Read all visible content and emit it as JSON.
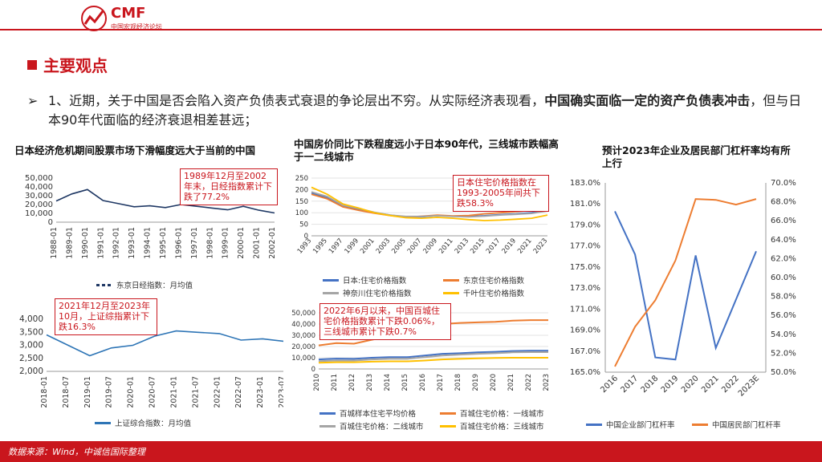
{
  "logo": {
    "name": "CMF",
    "subtitle": "中国宏观经济论坛"
  },
  "section_title": "主要观点",
  "bullet": {
    "prefix": "➢",
    "part1": "1、近期，关于中国是否会陷入资产负债表式衰退的争论层出不穷。从实际经济表现看，",
    "bold": "中国确实面临一定的资产负债表冲击",
    "part2": "，但与日本90年代面临的经济衰退相差甚远；"
  },
  "footer": "数据来源：Wind，中诚信国际整理",
  "colors": {
    "brand_red": "#c9161d",
    "navy": "#1f3864",
    "blue": "#4472c4",
    "orange": "#ed7d31",
    "gray": "#a5a5a5",
    "yellow": "#ffc000"
  },
  "charts": {
    "c1": {
      "title": "日本经济危机期间股票市场下滑幅度远大于当前的中国",
      "callout": "1989年12月至2002年末，日经指数累计下跌了77.2%",
      "legend": "东京日经指数：月均值"
    },
    "c2": {
      "callout": "2021年12月至2023年10月，上证综指累计下跌16.3%",
      "legend": "上证综合指数：月均值"
    },
    "c3": {
      "title": "中国房价同比下跌程度远小于日本90年代，三线城市跌幅高于一二线城市",
      "callout": "日本住宅价格指数在1993-2005年间共下跌58.3%",
      "legends": [
        "日本:住宅价格指数",
        "东京住宅价格指数",
        "神奈川住宅价格指数",
        "千叶住宅价格指数"
      ]
    },
    "c4": {
      "callout": "2022年6月以来，中国百城住宅价格指数累计下跌0.06%，三线城市累计下跌0.7%",
      "legends": [
        "百城样本住宅平均价格",
        "百城住宅价格：一线城市",
        "百城住宅价格：二线城市",
        "百城住宅价格：三线城市"
      ]
    },
    "c5": {
      "title": "预计2023年企业及居民部门杠杆率均有所上行",
      "legends": [
        "中国企业部门杠杆率",
        "中国居民部门杠杆率"
      ]
    }
  },
  "chart_data": [
    {
      "id": "c1",
      "type": "line",
      "title": "日本经济危机期间股票市场下滑幅度远大于当前的中国",
      "x": [
        "1988-01",
        "1989-01",
        "1990-01",
        "1991-01",
        "1992-01",
        "1993-01",
        "1994-01",
        "1995-01",
        "1996-01",
        "1997-01",
        "1998-01",
        "1999-01",
        "2000-01",
        "2001-01",
        "2002-01"
      ],
      "series": [
        {
          "name": "东京日经指数：月均值",
          "values": [
            24000,
            32000,
            37000,
            24500,
            21000,
            17500,
            18500,
            16500,
            20000,
            18000,
            16000,
            14000,
            18000,
            13500,
            10500
          ]
        }
      ],
      "yticks": [
        "0",
        "10,000",
        "20,000",
        "30,000",
        "40,000",
        "50,000"
      ],
      "ylim": [
        0,
        50000
      ]
    },
    {
      "id": "c2",
      "type": "line",
      "x": [
        "2018-01",
        "2018-07",
        "2019-01",
        "2019-07",
        "2020-01",
        "2020-07",
        "2021-01",
        "2021-07",
        "2022-01",
        "2022-07",
        "2023-01",
        "2023-07"
      ],
      "series": [
        {
          "name": "上证综合指数：月均值",
          "values": [
            3400,
            3000,
            2600,
            2900,
            3000,
            3350,
            3550,
            3500,
            3450,
            3200,
            3250,
            3150
          ]
        }
      ],
      "yticks": [
        "2,000",
        "2,500",
        "3,000",
        "3,500",
        "4,000"
      ],
      "ylim": [
        2000,
        4000
      ]
    },
    {
      "id": "c3",
      "type": "line",
      "title": "中国房价同比下跌程度远小于日本90年代，三线城市跌幅高于一二线城市",
      "x": [
        "1993",
        "1995",
        "1997",
        "1999",
        "2001",
        "2003",
        "2005",
        "2007",
        "2009",
        "2011",
        "2013",
        "2015",
        "2017",
        "2019",
        "2021",
        "2023"
      ],
      "series": [
        {
          "name": "日本:住宅价格指数",
          "values": [
            185,
            165,
            130,
            115,
            100,
            90,
            82,
            82,
            88,
            85,
            84,
            87,
            92,
            95,
            100,
            110
          ]
        },
        {
          "name": "东京住宅价格指数",
          "values": [
            180,
            160,
            125,
            110,
            98,
            88,
            80,
            85,
            90,
            86,
            88,
            95,
            100,
            105,
            110,
            125
          ]
        },
        {
          "name": "神奈川住宅价格指数",
          "values": [
            190,
            170,
            132,
            118,
            102,
            90,
            84,
            84,
            87,
            84,
            82,
            85,
            90,
            93,
            97,
            108
          ]
        },
        {
          "name": "千叶住宅价格指数",
          "values": [
            210,
            180,
            138,
            120,
            100,
            88,
            78,
            76,
            80,
            76,
            70,
            66,
            68,
            72,
            76,
            90
          ]
        }
      ],
      "yticks": [
        "0",
        "50",
        "100",
        "150",
        "200",
        "250"
      ],
      "ylim": [
        0,
        250
      ]
    },
    {
      "id": "c4",
      "type": "line",
      "x": [
        "2010",
        "2011",
        "2012",
        "2013",
        "2014",
        "2015",
        "2016",
        "2017",
        "2018",
        "2019",
        "2020",
        "2021",
        "2022",
        "2023"
      ],
      "series": [
        {
          "name": "百城样本住宅平均价格",
          "values": [
            8500,
            9200,
            9000,
            10000,
            10500,
            10500,
            12000,
            13500,
            14000,
            14800,
            15300,
            16000,
            16200,
            16200
          ]
        },
        {
          "name": "百城住宅价格：一线城市",
          "values": [
            21000,
            23000,
            22500,
            26000,
            29000,
            31000,
            37000,
            40000,
            41000,
            41500,
            42000,
            43000,
            43500,
            43500
          ]
        },
        {
          "name": "百城住宅价格：二线城市",
          "values": [
            7000,
            7500,
            7500,
            8500,
            9000,
            9000,
            10500,
            12000,
            12800,
            13500,
            14000,
            14800,
            15000,
            15000
          ]
        },
        {
          "name": "百城住宅价格：三线城市",
          "values": [
            5500,
            6000,
            6000,
            6500,
            6800,
            6800,
            7500,
            8500,
            9000,
            9500,
            9800,
            10000,
            10000,
            10000
          ]
        }
      ],
      "yticks": [
        "0",
        "10,000",
        "20,000",
        "30,000",
        "40,000",
        "50,000"
      ],
      "ylim": [
        0,
        50000
      ]
    },
    {
      "id": "c5",
      "type": "line",
      "title": "预计2023年企业及居民部门杠杆率均有所上行",
      "x": [
        "2016",
        "2017",
        "2018",
        "2019",
        "2020",
        "2021",
        "2022",
        "2023E"
      ],
      "series": [
        {
          "name": "中国企业部门杠杆率",
          "axis": "left",
          "values": [
            180.3,
            176.2,
            166.4,
            166.2,
            176.1,
            167.3,
            null,
            176.5
          ]
        },
        {
          "name": "中国居民部门杠杆率",
          "axis": "right",
          "values": [
            50.6,
            54.8,
            57.6,
            61.8,
            68.3,
            68.2,
            67.7,
            68.3
          ]
        }
      ],
      "yticks_left": [
        "165.0%",
        "167.0%",
        "169.0%",
        "171.0%",
        "173.0%",
        "175.0%",
        "177.0%",
        "179.0%",
        "181.0%",
        "183.0%"
      ],
      "yticks_right": [
        "50.0%",
        "52.0%",
        "54.0%",
        "56.0%",
        "58.0%",
        "60.0%",
        "62.0%",
        "64.0%",
        "66.0%",
        "68.0%",
        "70.0%"
      ],
      "ylim_left": [
        165,
        183
      ],
      "ylim_right": [
        50,
        70
      ]
    }
  ]
}
